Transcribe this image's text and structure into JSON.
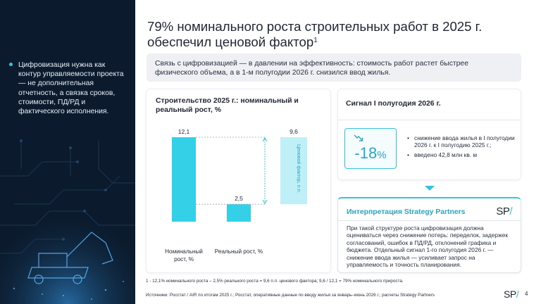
{
  "title": "79% номинального роста строительных работ в 2025 г. обеспечил ценовой фактор",
  "title_footnote_mark": "1",
  "sidebar": {
    "bullet": "Цифровизация нужна как контур управляемости проекта — не дополнительная отчетность, а связка сроков, стоимости, ПД/РД и фактического исполнения."
  },
  "summary": "Связь с цифровизацией — в давлении на эффективность: стоимость работ растет быстрее физического объема, а в 1-м полугодии 2026 г. снизился ввод жилья.",
  "chart_card": {
    "title": "Строительство 2025 г.: номинальный и реальный рост, %"
  },
  "chart_data": {
    "type": "bar",
    "title": "Строительство 2025 г.: номинальный и реальный рост, %",
    "categories": [
      "Номинальный рост, %",
      "Реальный рост, %"
    ],
    "values": [
      12.1,
      2.5
    ],
    "value_labels": [
      "12,1",
      "2,5"
    ],
    "extra_bar": {
      "value": 9.6,
      "label": "9,6",
      "annotation": "Ценовой фактор, п.п."
    },
    "colors": {
      "bar": "#33d0e8",
      "price_factor": "#bfeff7",
      "bracket": "#35c3dc"
    }
  },
  "signal": {
    "title": "Сигнал I полугодия 2026 г.",
    "kpi_value": "-18",
    "kpi_unit": "%",
    "kpi_icon": "trend-down-icon",
    "items": [
      "снижение ввода жилья в I полугодии 2026 г. к I полугодию 2025 г.;",
      "введено 42,8 млн кв. м"
    ]
  },
  "interpretation": {
    "title": "Интерпретация Strategy Partners",
    "logo": "SP",
    "logo_slash": "/",
    "text": "При такой структуре роста цифровизация должна оцениваться через снижение потерь: переделок, задержек согласований, ошибок в ПД/РД, отклонений графика и бюджета. Отдельный сигнал 1-го полугодия 2026 г. — снижение ввода жилья — усиливает запрос на управляемость и точность планирования."
  },
  "footnote": "1  - 12,1% номинального роста – 2,5% реального роста = 9,6 п.п. ценового фактора; 9,6 / 12,1 = 79% номинального прироста.",
  "sources": "Источники: Росстат / AIR по итогам 2025 г.; Росстат, оперативные данные по вводу жилья за январь–июнь 2026 г.; расчеты Strategy Partners",
  "brand": {
    "logo": "SP",
    "slash": "/",
    "page_number": "4"
  },
  "colors": {
    "accent": "#35c3dc",
    "dark_panel": "#0b1a2c",
    "text": "#1f2733"
  }
}
